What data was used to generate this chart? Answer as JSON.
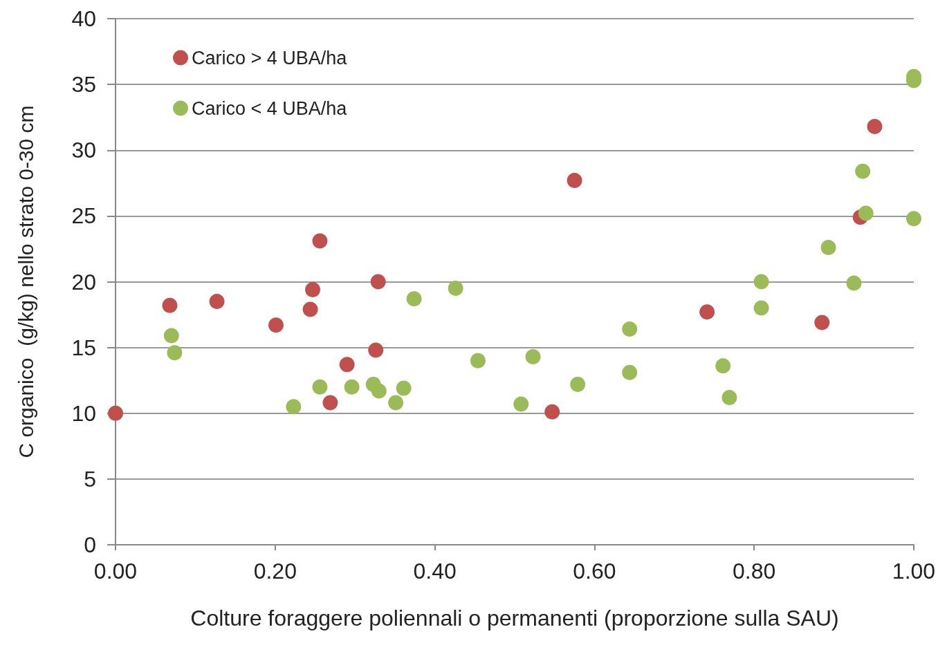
{
  "chart_data": {
    "type": "scatter",
    "xlabel": "Colture foraggere poliennali o permanenti (proporzione sulla SAU)",
    "ylabel": "C organico  (g/kg) nello strato 0-30 cm",
    "series": [
      {
        "name": "Carico > 4 UBA/ha",
        "color": "#c0504d",
        "x": [
          0,
          0.068,
          0.127,
          0.201,
          0.244,
          0.247,
          0.256,
          0.269,
          0.29,
          0.326,
          0.329,
          0.547,
          0.575,
          0.741,
          0.885,
          0.933,
          0.951
        ],
        "values": [
          10.0,
          18.2,
          18.5,
          16.7,
          17.9,
          19.4,
          23.1,
          10.8,
          13.7,
          14.8,
          20.0,
          10.1,
          27.7,
          17.7,
          16.9,
          24.9,
          31.8
        ]
      },
      {
        "name": "Carico < 4 UBA/ha",
        "color": "#9bbb59",
        "x": [
          0.07,
          0.074,
          0.223,
          0.256,
          0.296,
          0.323,
          0.33,
          0.351,
          0.361,
          0.374,
          0.426,
          0.454,
          0.508,
          0.523,
          0.579,
          0.644,
          0.644,
          0.761,
          0.769,
          0.809,
          0.809,
          0.893,
          0.925,
          0.936,
          0.94,
          1.0,
          1.0,
          1.0
        ],
        "values": [
          15.9,
          14.6,
          10.5,
          12.0,
          12.0,
          12.2,
          11.7,
          10.8,
          11.9,
          18.7,
          19.5,
          14.0,
          10.7,
          14.3,
          12.2,
          16.4,
          13.1,
          13.6,
          11.2,
          20.0,
          18.0,
          22.6,
          19.9,
          28.4,
          25.2,
          35.6,
          35.3,
          24.8
        ]
      }
    ],
    "xlim": [
      0,
      1
    ],
    "xticks": [
      {
        "value": 0,
        "label": "0.00"
      },
      {
        "value": 0.2,
        "label": "0.20"
      },
      {
        "value": 0.4,
        "label": "0.40"
      },
      {
        "value": 0.6,
        "label": "0.60"
      },
      {
        "value": 0.8,
        "label": "0.80"
      },
      {
        "value": 1,
        "label": "1.00"
      }
    ],
    "ylim": [
      0,
      40
    ],
    "yticks": [
      0,
      5,
      10,
      15,
      20,
      25,
      30,
      35,
      40
    ],
    "grid": "y",
    "legend": "top left",
    "marker": "circle"
  }
}
